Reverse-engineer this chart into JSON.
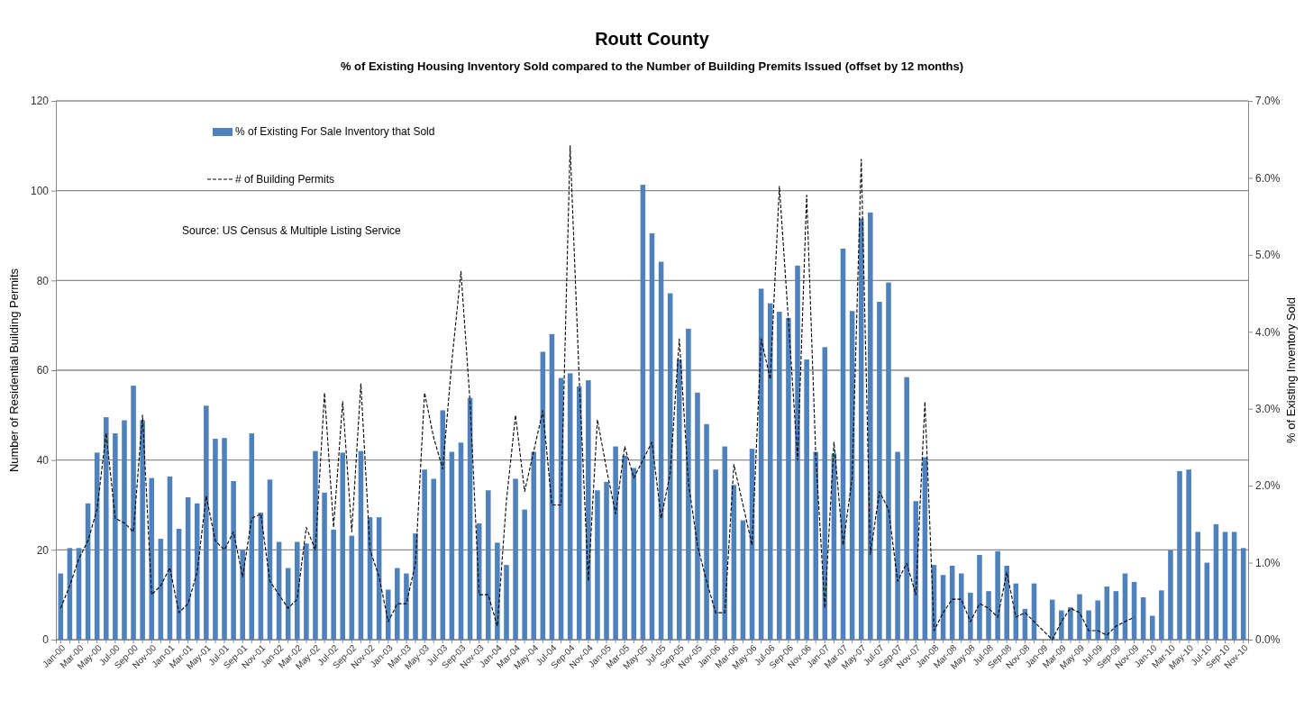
{
  "chart_data": {
    "type": "bar",
    "title": "Routt County",
    "subtitle": "% of Existing Housing Inventory Sold compared to the Number of Building Premits Issued (offset by 12 months)",
    "ylabel": "Number of Residential Building Permits",
    "y2label": "% of Existing Inventory Sold",
    "annotations": [
      "Source:  US Census & Multiple Listing Service"
    ],
    "categories": [
      "Jan-00",
      null,
      "Mar-00",
      null,
      "May-00",
      null,
      "Jul-00",
      null,
      "Sep-00",
      null,
      "Nov-00",
      null,
      "Jan-01",
      null,
      "Mar-01",
      null,
      "May-01",
      null,
      "Jul-01",
      null,
      "Sep-01",
      null,
      "Nov-01",
      null,
      "Jan-02",
      null,
      "Mar-02",
      null,
      "May-02",
      null,
      "Jul-02",
      null,
      "Sep-02",
      null,
      "Nov-02",
      null,
      "Jan-03",
      null,
      "Mar-03",
      null,
      "May-03",
      null,
      "Jul-03",
      null,
      "Sep-03",
      null,
      "Nov-03",
      null,
      "Jan-04",
      null,
      "Mar-04",
      null,
      "May-04",
      null,
      "Jul-04",
      null,
      "Sep-04",
      null,
      "Nov-04",
      null,
      "Jan-05",
      null,
      "Mar-05",
      null,
      "May-05",
      null,
      "Jul-05",
      null,
      "Sep-05",
      null,
      "Nov-05",
      null,
      "Jan-06",
      null,
      "Mar-06",
      null,
      "May-06",
      null,
      "Jul-06",
      null,
      "Sep-06",
      null,
      "Nov-06",
      null,
      "Jan-07",
      null,
      "Mar-07",
      null,
      "May-07",
      null,
      "Jul-07",
      null,
      "Sep-07",
      null,
      "Nov-07",
      null,
      "Jan-08",
      null,
      "Mar-08",
      null,
      "May-08",
      null,
      "Jul-08",
      null,
      "Sep-08",
      null,
      "Nov-08",
      null,
      "Jan-09",
      null,
      "Mar-09",
      null,
      "May-09",
      null,
      "Jul-09",
      null,
      "Sep-09",
      null,
      "Nov-09",
      null,
      "Jan-10",
      null,
      "Mar-10",
      null,
      "May-10",
      null,
      "Jul-10",
      null,
      "Sep-10",
      null,
      "Nov-10"
    ],
    "series": [
      {
        "name": "% of Existing For Sale Inventory that Sold",
        "axis": "y2",
        "color": "#4f81bd",
        "values": [
          0.86,
          1.19,
          1.19,
          1.77,
          2.43,
          2.89,
          2.68,
          2.85,
          3.3,
          2.85,
          2.1,
          1.31,
          2.12,
          1.44,
          1.85,
          1.77,
          3.04,
          2.61,
          2.62,
          2.06,
          1.17,
          2.68,
          1.65,
          2.08,
          1.27,
          0.93,
          1.27,
          1.25,
          2.45,
          1.91,
          1.43,
          2.43,
          1.35,
          2.45,
          1.59,
          1.59,
          0.65,
          0.93,
          0.86,
          1.38,
          2.21,
          2.09,
          2.98,
          2.44,
          2.56,
          3.14,
          1.51,
          1.94,
          1.26,
          0.97,
          2.09,
          1.69,
          2.44,
          3.74,
          3.97,
          3.4,
          3.46,
          3.29,
          3.37,
          1.94,
          2.05,
          2.51,
          2.39,
          2.23,
          5.91,
          5.28,
          4.91,
          4.5,
          3.64,
          4.04,
          3.21,
          2.8,
          2.21,
          2.51,
          2.01,
          1.55,
          2.48,
          4.56,
          4.37,
          4.26,
          4.18,
          4.86,
          3.64,
          2.44,
          3.8,
          2.42,
          5.08,
          4.27,
          5.47,
          5.55,
          4.39,
          4.64,
          2.44,
          3.41,
          1.8,
          2.37,
          0.97,
          0.84,
          0.96,
          0.86,
          0.61,
          1.1,
          0.63,
          1.15,
          0.96,
          0.73,
          0.4,
          0.73,
          null,
          0.52,
          0.38,
          0.42,
          0.59,
          0.38,
          0.51,
          0.69,
          0.63,
          0.86,
          0.75,
          0.55,
          0.31,
          0.64,
          1.16,
          2.19,
          2.21,
          1.4,
          1.0,
          1.5,
          1.4,
          1.4,
          1.19
        ]
      },
      {
        "name": "# of Building Permits",
        "type": "line",
        "color": "#000000",
        "line_style": "dashed",
        "values": [
          7,
          12,
          18,
          22,
          29,
          46,
          27,
          26,
          24,
          50,
          10,
          12,
          16,
          6,
          8,
          15,
          32,
          22,
          20,
          24,
          14,
          27,
          28,
          13,
          10,
          7,
          9,
          25,
          20,
          55,
          25,
          53,
          24,
          57,
          20,
          14,
          4,
          8,
          8,
          17,
          55,
          45,
          38,
          62,
          82,
          53,
          10,
          10,
          3,
          31,
          50,
          33,
          42,
          51,
          30,
          30,
          110,
          58,
          13,
          49,
          38,
          28,
          43,
          36,
          40,
          44,
          27,
          37,
          67,
          35,
          21,
          13,
          6,
          6,
          39,
          30,
          21,
          67,
          58,
          101,
          71,
          40,
          99,
          41,
          7,
          44,
          21,
          36,
          107,
          19,
          33,
          29,
          13,
          17,
          10,
          53,
          2,
          6,
          9,
          9,
          4,
          8,
          7,
          5,
          15,
          5,
          6,
          4,
          2,
          0,
          4,
          7,
          6,
          2,
          2,
          1,
          3,
          4,
          5,
          null,
          null,
          null,
          null,
          null,
          null,
          null,
          null,
          null,
          null,
          null,
          null
        ]
      }
    ],
    "ylim": [
      0,
      120
    ],
    "yticks": [
      0,
      20,
      40,
      60,
      80,
      100,
      120
    ],
    "y2lim": [
      0,
      7
    ],
    "y2ticks": [
      {
        "value": 0,
        "label": "0.0%"
      },
      {
        "value": 1,
        "label": "1.0%"
      },
      {
        "value": 2,
        "label": "2.0%"
      },
      {
        "value": 3,
        "label": "3.0%"
      },
      {
        "value": 4,
        "label": "4.0%"
      },
      {
        "value": 5,
        "label": "5.0%"
      },
      {
        "value": 6,
        "label": "6.0%"
      },
      {
        "value": 7,
        "label": "7.0%"
      }
    ],
    "grid": "y",
    "legend": "top left",
    "marker": "none"
  }
}
